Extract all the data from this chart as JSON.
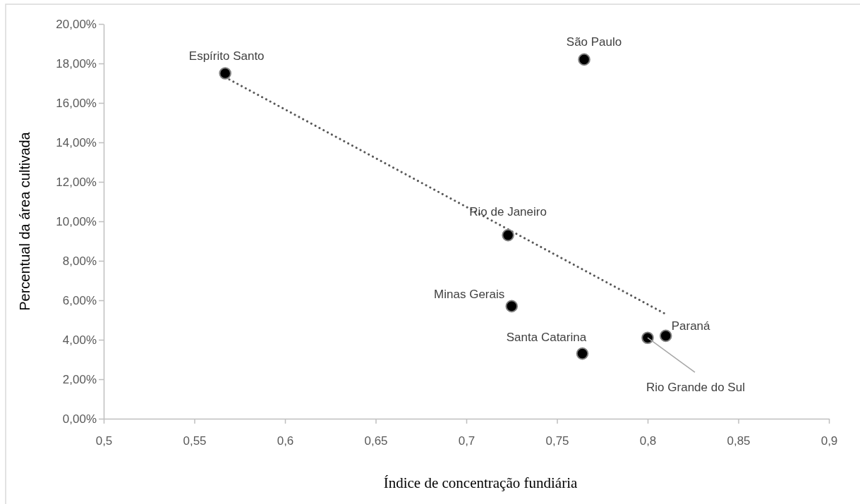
{
  "chart_data": {
    "type": "scatter",
    "xlabel": "Índice de concentração fundiária",
    "ylabel": "Percentual da área cultivada",
    "xlim": [
      0.5,
      0.9
    ],
    "xticks": [
      {
        "value": 0.5,
        "label": "0,5"
      },
      {
        "value": 0.55,
        "label": "0,55"
      },
      {
        "value": 0.6,
        "label": "0,6"
      },
      {
        "value": 0.65,
        "label": "0,65"
      },
      {
        "value": 0.7,
        "label": "0,7"
      },
      {
        "value": 0.75,
        "label": "0,75"
      },
      {
        "value": 0.8,
        "label": "0,8"
      },
      {
        "value": 0.85,
        "label": "0,85"
      },
      {
        "value": 0.9,
        "label": "0,9"
      }
    ],
    "ylim": [
      0,
      20
    ],
    "yticks": [
      {
        "value": 0,
        "label": "0,00%"
      },
      {
        "value": 2,
        "label": "2,00%"
      },
      {
        "value": 4,
        "label": "4,00%"
      },
      {
        "value": 6,
        "label": "6,00%"
      },
      {
        "value": 8,
        "label": "8,00%"
      },
      {
        "value": 10,
        "label": "10,00%"
      },
      {
        "value": 12,
        "label": "12,00%"
      },
      {
        "value": 14,
        "label": "14,00%"
      },
      {
        "value": 16,
        "label": "16,00%"
      },
      {
        "value": 18,
        "label": "18,00%"
      },
      {
        "value": 20,
        "label": "20,00%"
      }
    ],
    "grid": false,
    "marker": "circle",
    "series": [
      {
        "color": "#000000",
        "x": [
          0.567,
          0.765,
          0.723,
          0.725,
          0.764,
          0.8,
          0.81
        ],
        "values": [
          17.5,
          18.2,
          9.3,
          5.7,
          3.3,
          4.1,
          4.2
        ]
      },
      {
        "type": "line",
        "color": "#595959",
        "line_style": "dotted",
        "marker": "none",
        "x": [
          0.567,
          0.81
        ],
        "values": [
          17.3,
          5.3
        ]
      }
    ],
    "annotations": [
      {
        "text": "Espírito Santo",
        "x": 0.567,
        "y": 17.5
      },
      {
        "text": "São Paulo",
        "x": 0.765,
        "y": 18.2
      },
      {
        "text": "Rio de Janeiro",
        "x": 0.723,
        "y": 9.3
      },
      {
        "text": "Minas Gerais",
        "x": 0.725,
        "y": 5.7
      },
      {
        "text": "Santa Catarina",
        "x": 0.764,
        "y": 3.3
      },
      {
        "text": "Rio Grande do Sul",
        "x": 0.8,
        "y": 4.1
      },
      {
        "text": "Paraná",
        "x": 0.81,
        "y": 4.2
      }
    ]
  }
}
